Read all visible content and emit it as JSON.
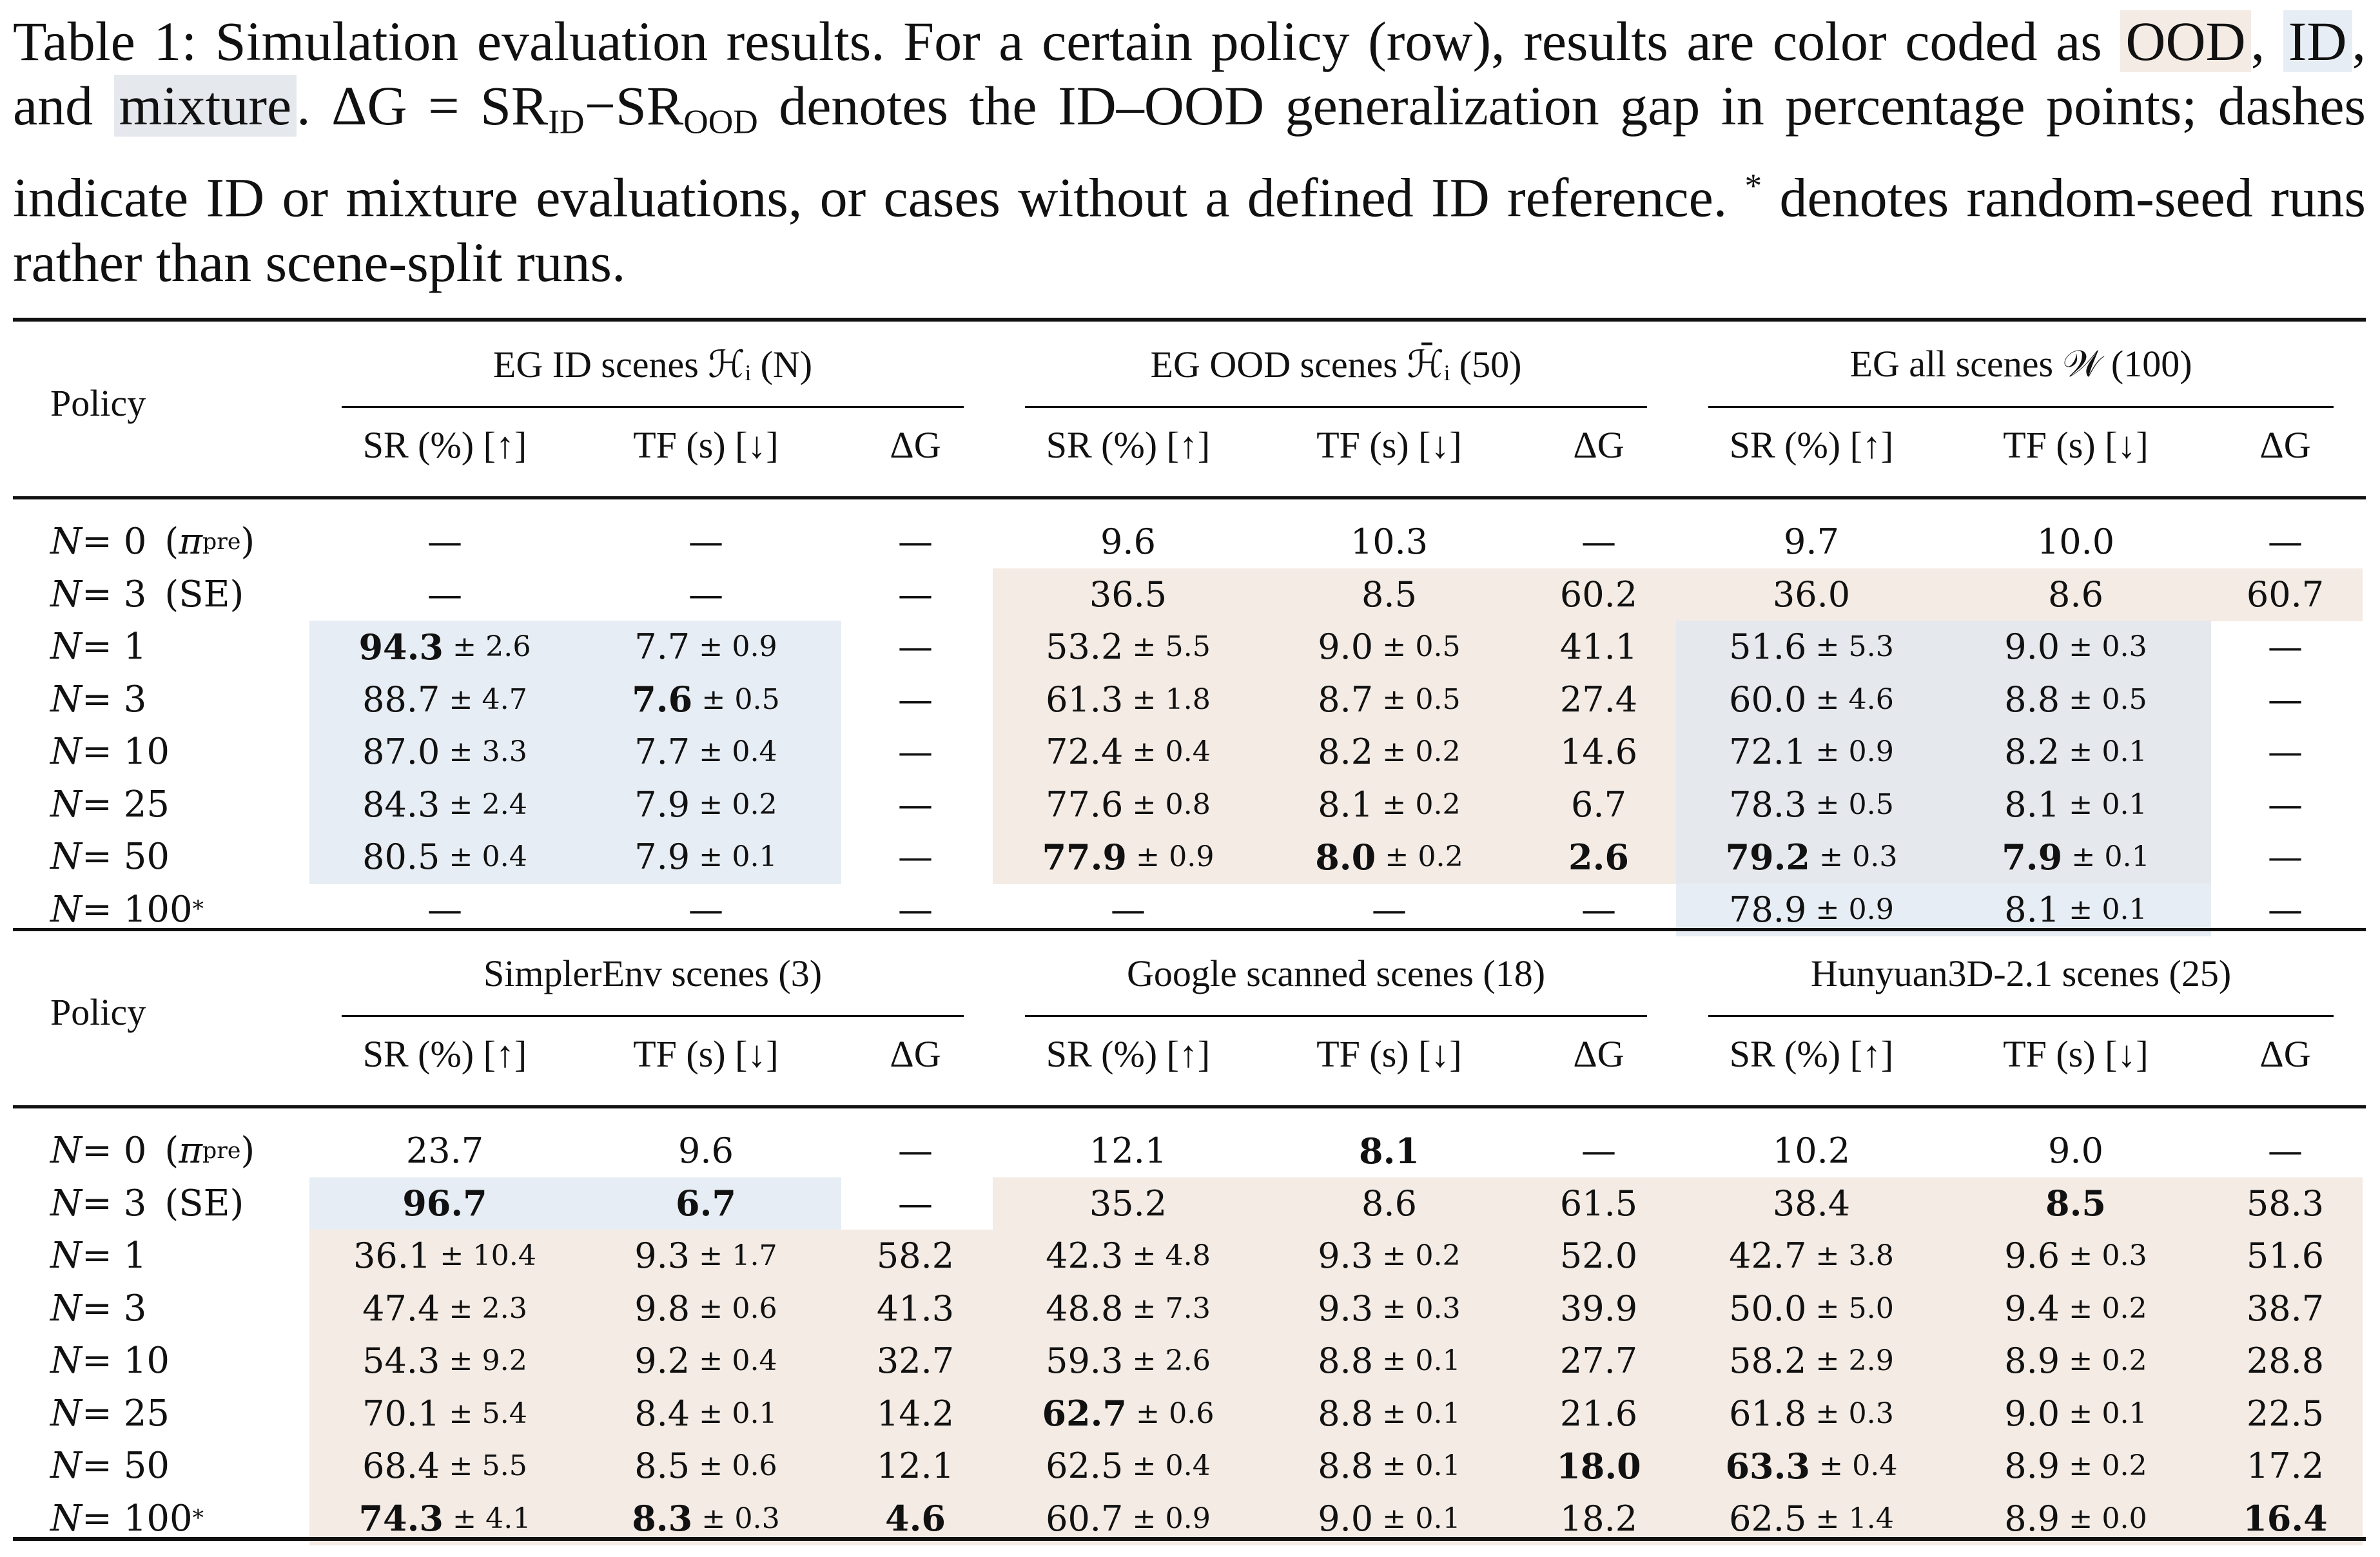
{
  "caption": {
    "p1": "Table 1: Simulation evaluation results. For a certain policy (row), results are color coded as ",
    "ood": "OOD",
    "p2": ", ",
    "id": "ID",
    "p3": ", and ",
    "mix": "mixture",
    "p4": ". ΔG = SR",
    "sub_id": "ID",
    "p5": "−SR",
    "sub_ood": "OOD",
    "p6": " denotes the ID–OOD generalization gap in percentage points; dashes indicate ID or mixture evaluations, or cases without a defined ID reference. ",
    "star": "*",
    "p7": " denotes random-seed runs rather than scene-split runs."
  },
  "colors": {
    "ood": "#f3ebe4",
    "id": "#e7edf4",
    "mixture": "#e5e9ee"
  },
  "policy_header": "Policy",
  "subcolumns": [
    "SR (%) [↑]",
    "TF (s) [↓]",
    "ΔG"
  ],
  "block1": {
    "groups": [
      "EG ID scenes ℋᵢ (N)",
      "EG OOD scenes ℋ̄ᵢ (50)",
      "EG all scenes 𝒲 (100)"
    ],
    "rows": [
      {
        "policy": "N = 0  (πpre)",
        "cells": [
          [
            "—"
          ],
          [
            "—"
          ],
          [
            "—"
          ],
          [
            "9.6"
          ],
          [
            "10.3"
          ],
          [
            "—"
          ],
          [
            "9.7"
          ],
          [
            "10.0"
          ],
          [
            "—"
          ]
        ]
      },
      {
        "policy": "N = 3  (SE)",
        "cells": [
          [
            "—"
          ],
          [
            "—"
          ],
          [
            "—"
          ],
          [
            "36.5"
          ],
          [
            "8.5"
          ],
          [
            "60.2"
          ],
          [
            "36.0"
          ],
          [
            "8.6"
          ],
          [
            "60.7"
          ]
        ]
      },
      {
        "policy": "N = 1",
        "cells": [
          [
            "94.3",
            "2.6",
            1
          ],
          [
            "7.7",
            "0.9"
          ],
          [
            "—"
          ],
          [
            "53.2",
            "5.5"
          ],
          [
            "9.0",
            "0.5"
          ],
          [
            "41.1"
          ],
          [
            "51.6",
            "5.3"
          ],
          [
            "9.0",
            "0.3"
          ],
          [
            "—"
          ]
        ]
      },
      {
        "policy": "N = 3",
        "cells": [
          [
            "88.7",
            "4.7"
          ],
          [
            "7.6",
            "0.5",
            1
          ],
          [
            "—"
          ],
          [
            "61.3",
            "1.8"
          ],
          [
            "8.7",
            "0.5"
          ],
          [
            "27.4"
          ],
          [
            "60.0",
            "4.6"
          ],
          [
            "8.8",
            "0.5"
          ],
          [
            "—"
          ]
        ]
      },
      {
        "policy": "N = 10",
        "cells": [
          [
            "87.0",
            "3.3"
          ],
          [
            "7.7",
            "0.4"
          ],
          [
            "—"
          ],
          [
            "72.4",
            "0.4"
          ],
          [
            "8.2",
            "0.2"
          ],
          [
            "14.6"
          ],
          [
            "72.1",
            "0.9"
          ],
          [
            "8.2",
            "0.1"
          ],
          [
            "—"
          ]
        ]
      },
      {
        "policy": "N = 25",
        "cells": [
          [
            "84.3",
            "2.4"
          ],
          [
            "7.9",
            "0.2"
          ],
          [
            "—"
          ],
          [
            "77.6",
            "0.8"
          ],
          [
            "8.1",
            "0.2"
          ],
          [
            "6.7"
          ],
          [
            "78.3",
            "0.5"
          ],
          [
            "8.1",
            "0.1"
          ],
          [
            "—"
          ]
        ]
      },
      {
        "policy": "N = 50",
        "cells": [
          [
            "80.5",
            "0.4"
          ],
          [
            "7.9",
            "0.1"
          ],
          [
            "—"
          ],
          [
            "77.9",
            "0.9",
            1
          ],
          [
            "8.0",
            "0.2",
            1
          ],
          [
            "2.6",
            "",
            1
          ],
          [
            "79.2",
            "0.3",
            1
          ],
          [
            "7.9",
            "0.1",
            1
          ],
          [
            "—"
          ]
        ]
      },
      {
        "policy": "N = 100*",
        "cells": [
          [
            "—"
          ],
          [
            "—"
          ],
          [
            "—"
          ],
          [
            "—"
          ],
          [
            "—"
          ],
          [
            "—"
          ],
          [
            "78.9",
            "0.9"
          ],
          [
            "8.1",
            "0.1"
          ],
          [
            "—"
          ]
        ]
      }
    ]
  },
  "block2": {
    "groups": [
      "SimplerEnv scenes (3)",
      "Google scanned scenes (18)",
      "Hunyuan3D-2.1 scenes (25)"
    ],
    "rows": [
      {
        "policy": "N = 0  (πpre)",
        "cells": [
          [
            "23.7"
          ],
          [
            "9.6"
          ],
          [
            "—"
          ],
          [
            "12.1"
          ],
          [
            "8.1",
            "",
            1
          ],
          [
            "—"
          ],
          [
            "10.2"
          ],
          [
            "9.0"
          ],
          [
            "—"
          ]
        ]
      },
      {
        "policy": "N = 3  (SE)",
        "cells": [
          [
            "96.7",
            "",
            1
          ],
          [
            "6.7",
            "",
            1
          ],
          [
            "—"
          ],
          [
            "35.2"
          ],
          [
            "8.6"
          ],
          [
            "61.5"
          ],
          [
            "38.4"
          ],
          [
            "8.5",
            "",
            1
          ],
          [
            "58.3"
          ]
        ]
      },
      {
        "policy": "N = 1",
        "cells": [
          [
            "36.1",
            "10.4"
          ],
          [
            "9.3",
            "1.7"
          ],
          [
            "58.2"
          ],
          [
            "42.3",
            "4.8"
          ],
          [
            "9.3",
            "0.2"
          ],
          [
            "52.0"
          ],
          [
            "42.7",
            "3.8"
          ],
          [
            "9.6",
            "0.3"
          ],
          [
            "51.6"
          ]
        ]
      },
      {
        "policy": "N = 3",
        "cells": [
          [
            "47.4",
            "2.3"
          ],
          [
            "9.8",
            "0.6"
          ],
          [
            "41.3"
          ],
          [
            "48.8",
            "7.3"
          ],
          [
            "9.3",
            "0.3"
          ],
          [
            "39.9"
          ],
          [
            "50.0",
            "5.0"
          ],
          [
            "9.4",
            "0.2"
          ],
          [
            "38.7"
          ]
        ]
      },
      {
        "policy": "N = 10",
        "cells": [
          [
            "54.3",
            "9.2"
          ],
          [
            "9.2",
            "0.4"
          ],
          [
            "32.7"
          ],
          [
            "59.3",
            "2.6"
          ],
          [
            "8.8",
            "0.1"
          ],
          [
            "27.7"
          ],
          [
            "58.2",
            "2.9"
          ],
          [
            "8.9",
            "0.2"
          ],
          [
            "28.8"
          ]
        ]
      },
      {
        "policy": "N = 25",
        "cells": [
          [
            "70.1",
            "5.4"
          ],
          [
            "8.4",
            "0.1"
          ],
          [
            "14.2"
          ],
          [
            "62.7",
            "0.6",
            1
          ],
          [
            "8.8",
            "0.1"
          ],
          [
            "21.6"
          ],
          [
            "61.8",
            "0.3"
          ],
          [
            "9.0",
            "0.1"
          ],
          [
            "22.5"
          ]
        ]
      },
      {
        "policy": "N = 50",
        "cells": [
          [
            "68.4",
            "5.5"
          ],
          [
            "8.5",
            "0.6"
          ],
          [
            "12.1"
          ],
          [
            "62.5",
            "0.4"
          ],
          [
            "8.8",
            "0.1"
          ],
          [
            "18.0",
            "",
            1
          ],
          [
            "63.3",
            "0.4",
            1
          ],
          [
            "8.9",
            "0.2"
          ],
          [
            "17.2"
          ]
        ]
      },
      {
        "policy": "N = 100*",
        "cells": [
          [
            "74.3",
            "4.1",
            1
          ],
          [
            "8.3",
            "0.3",
            1
          ],
          [
            "4.6",
            "",
            1
          ],
          [
            "60.7",
            "0.9"
          ],
          [
            "9.0",
            "0.1"
          ],
          [
            "18.2"
          ],
          [
            "62.5",
            "1.4"
          ],
          [
            "8.9",
            "0.0"
          ],
          [
            "16.4",
            "",
            1
          ]
        ]
      }
    ]
  }
}
